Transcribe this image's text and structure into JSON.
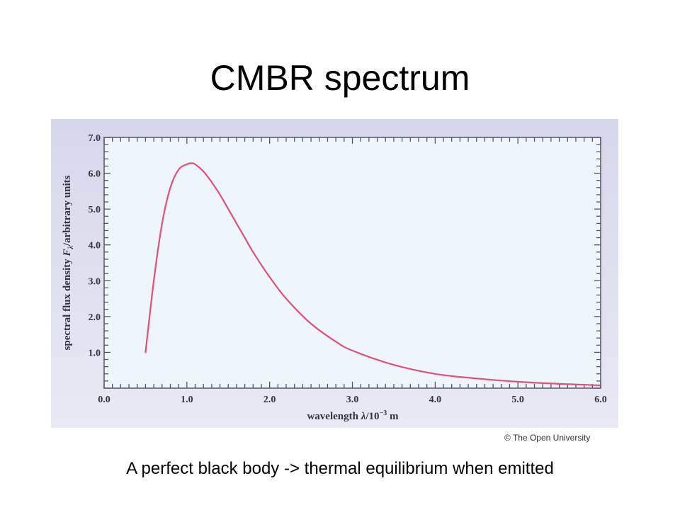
{
  "slide": {
    "title": "CMBR spectrum",
    "caption": "A perfect black body -> thermal equilibrium when emitted",
    "credit": "© The Open University"
  },
  "chart_data": {
    "type": "line",
    "ylabel_main": "spectral flux density ",
    "ylabel_symbol": "F",
    "ylabel_sub": "λ",
    "ylabel_units": "/arbitrary units",
    "xlabel_main": "wavelength ",
    "xlabel_symbol": "λ",
    "xlabel_units": "/10",
    "xlabel_exp": "−3",
    "xlabel_tail": " m",
    "xlim": [
      0,
      6
    ],
    "ylim": [
      0,
      7
    ],
    "x_ticks": [
      "0.0",
      "1.0",
      "2.0",
      "3.0",
      "4.0",
      "5.0",
      "6.0"
    ],
    "y_ticks": [
      "1.0",
      "2.0",
      "3.0",
      "4.0",
      "5.0",
      "6.0",
      "7.0"
    ],
    "grid": false,
    "colors": {
      "curve": "#e0507a",
      "plot_bg": "#eef5fb",
      "frame_bg": "#dcdcec",
      "axis": "#555566"
    },
    "series": [
      {
        "x": [
          0.5,
          0.6,
          0.7,
          0.8,
          0.9,
          1.0,
          1.05,
          1.1,
          1.2,
          1.3,
          1.4,
          1.5,
          1.6,
          1.7,
          1.8,
          2.0,
          2.2,
          2.5,
          2.8,
          3.0,
          3.5,
          4.0,
          4.5,
          5.0,
          5.5,
          6.0
        ],
        "y": [
          1.0,
          3.0,
          4.6,
          5.6,
          6.1,
          6.25,
          6.28,
          6.25,
          6.05,
          5.75,
          5.4,
          5.0,
          4.6,
          4.2,
          3.8,
          3.1,
          2.5,
          1.8,
          1.3,
          1.05,
          0.65,
          0.4,
          0.27,
          0.18,
          0.12,
          0.08
        ]
      }
    ]
  }
}
